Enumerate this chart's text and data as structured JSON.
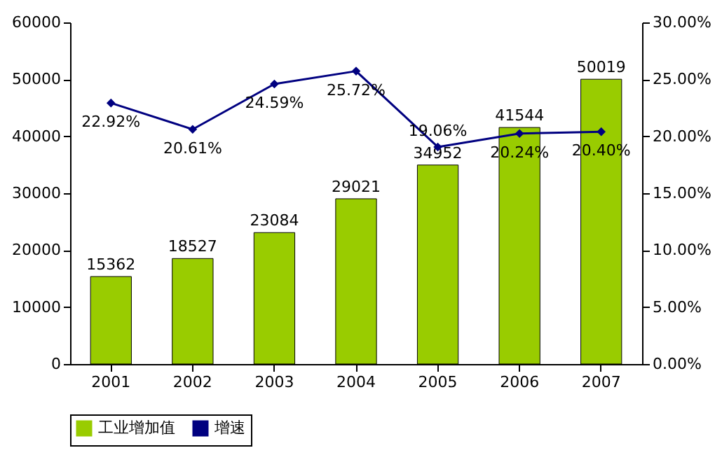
{
  "chart_data": {
    "type": "bar",
    "categories": [
      "2001",
      "2002",
      "2003",
      "2004",
      "2005",
      "2006",
      "2007"
    ],
    "series": [
      {
        "name": "工业增加值",
        "color": "#99cc00",
        "values": [
          15362,
          18527,
          23084,
          29021,
          34952,
          41544,
          50019
        ],
        "value_labels": [
          "15362",
          "18527",
          "23084",
          "29021",
          "34952",
          "41544",
          "50019"
        ]
      },
      {
        "name": "增速",
        "type": "line",
        "axis": "y2",
        "color": "#000080",
        "marker": "diamond",
        "line_style": "solid",
        "values": [
          22.92,
          20.61,
          24.59,
          25.72,
          19.06,
          20.24,
          20.4
        ],
        "value_labels": [
          "22.92%",
          "20.61%",
          "24.59%",
          "25.72%",
          "19.06%",
          "20.24%",
          "20.40%"
        ]
      }
    ],
    "ylim": [
      0,
      60000
    ],
    "yticks": [
      0,
      10000,
      20000,
      30000,
      40000,
      50000,
      60000
    ],
    "y2lim": [
      0,
      30
    ],
    "y2ticks": [
      {
        "value": 0,
        "label": "0.00%"
      },
      {
        "value": 5,
        "label": "5.00%"
      },
      {
        "value": 10,
        "label": "10.00%"
      },
      {
        "value": 15,
        "label": "15.00%"
      },
      {
        "value": 20,
        "label": "20.00%"
      },
      {
        "value": 25,
        "label": "25.00%"
      },
      {
        "value": 30,
        "label": "30.00%"
      }
    ],
    "grid": false,
    "legend": "bottom"
  }
}
